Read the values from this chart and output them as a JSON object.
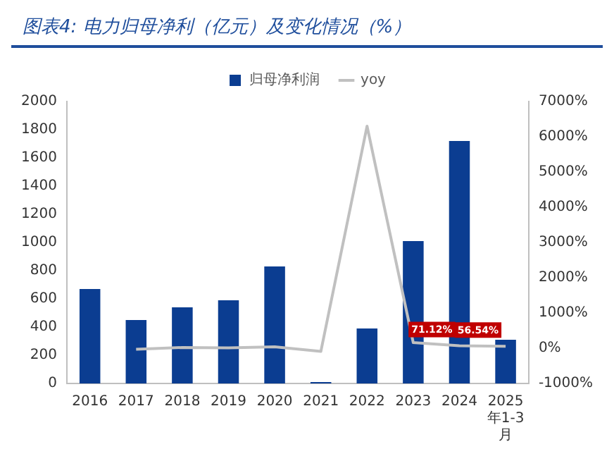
{
  "chart_data": {
    "type": "bar",
    "title": "图表4: 电力归母净利（亿元）及变化情况（%）",
    "categories": [
      "2016",
      "2017",
      "2018",
      "2019",
      "2020",
      "2021",
      "2022",
      "2023",
      "2024",
      "2025年1-3月"
    ],
    "series": [
      {
        "name": "归母净利润",
        "color": "#0b3d91",
        "values": [
          670,
          450,
          540,
          590,
          830,
          10,
          390,
          1010,
          1720,
          310
        ]
      },
      {
        "name": "yoy",
        "type": "line",
        "axis": "y2",
        "color": "#c0c0c0",
        "marker": "none",
        "values": [
          null,
          -30,
          20,
          10,
          40,
          -90,
          6300,
          160,
          71.12,
          56.54
        ],
        "value_labels": [
          null,
          null,
          null,
          null,
          null,
          null,
          null,
          null,
          "71.12%",
          "56.54%"
        ]
      }
    ],
    "ylim": [
      0,
      2000
    ],
    "yticks": [
      0,
      200,
      400,
      600,
      800,
      1000,
      1200,
      1400,
      1600,
      1800,
      2000
    ],
    "y2lim": [
      -1000,
      7000
    ],
    "y2ticks": [
      {
        "value": -1000,
        "label": "-1000%"
      },
      {
        "value": 0,
        "label": "0%"
      },
      {
        "value": 1000,
        "label": "1000%"
      },
      {
        "value": 2000,
        "label": "2000%"
      },
      {
        "value": 3000,
        "label": "3000%"
      },
      {
        "value": 4000,
        "label": "4000%"
      },
      {
        "value": 5000,
        "label": "5000%"
      },
      {
        "value": 6000,
        "label": "6000%"
      },
      {
        "value": 7000,
        "label": "7000%"
      }
    ],
    "grid": false,
    "legend": "top"
  }
}
